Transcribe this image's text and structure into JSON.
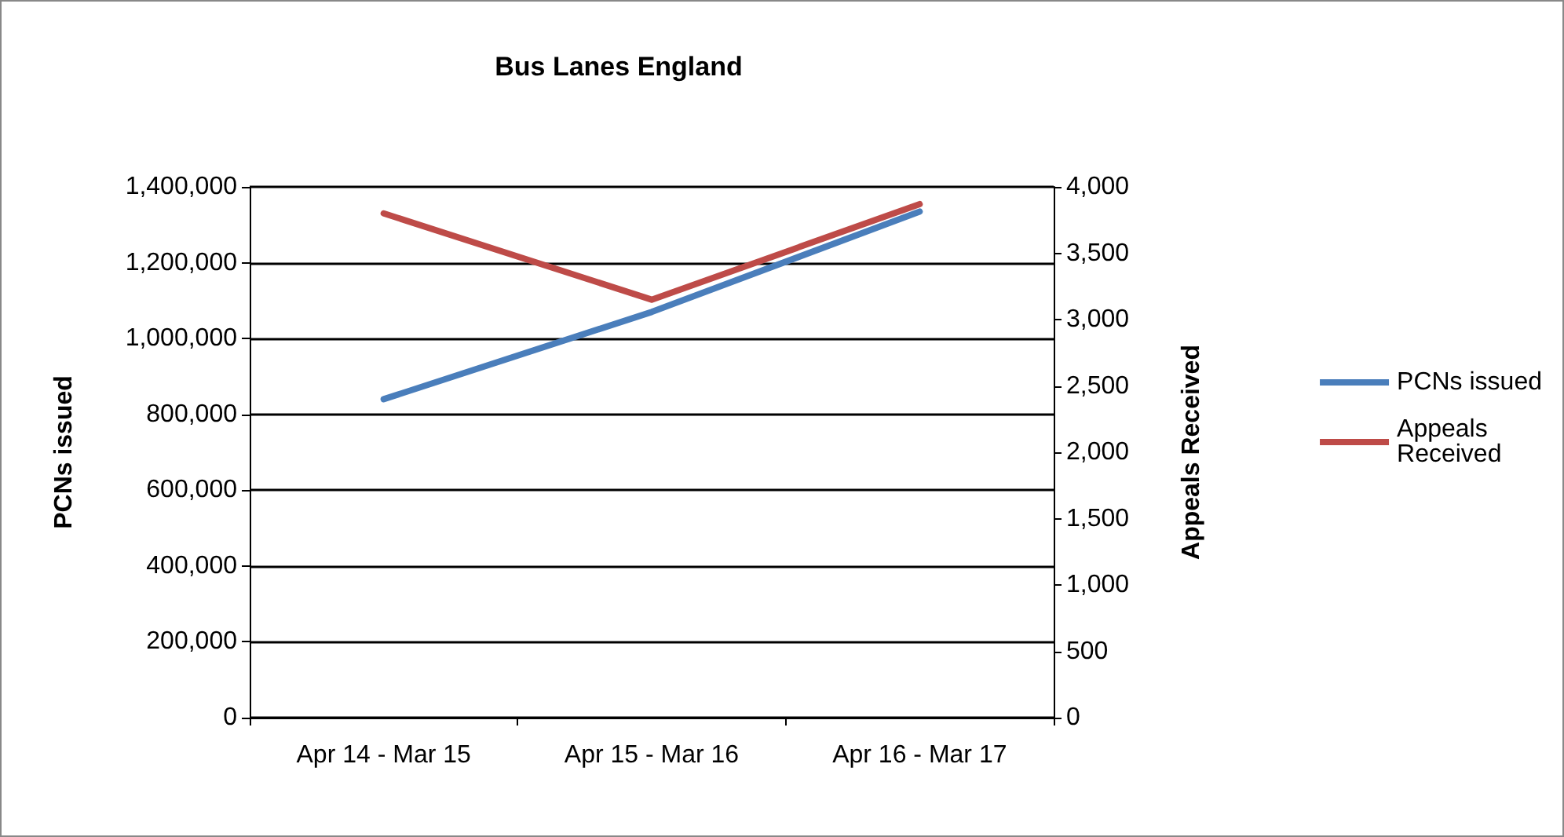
{
  "chart_data": {
    "type": "line",
    "title": "Bus Lanes England",
    "ylabel": "PCNs issued",
    "y2label": "Appeals Received",
    "categories": [
      "Apr 14 - Mar 15",
      "Apr 15 - Mar 16",
      "Apr 16 - Mar 17"
    ],
    "series": [
      {
        "name": "PCNs issued",
        "color": "#4a7ebb",
        "values": [
          840000,
          1070000,
          1335000
        ]
      },
      {
        "name": "Appeals Received",
        "color": "#be4b48",
        "values": [
          3800,
          3150,
          3870
        ],
        "axis": "y2"
      }
    ],
    "ylim": [
      0,
      1400000
    ],
    "yticks": [
      0,
      {
        "value": 200000,
        "label": "200,000"
      },
      {
        "value": 400000,
        "label": "400,000"
      },
      {
        "value": 600000,
        "label": "600,000"
      },
      {
        "value": 800000,
        "label": "800,000"
      },
      {
        "value": 1000000,
        "label": "1,000,000"
      },
      {
        "value": 1200000,
        "label": "1,200,000"
      },
      {
        "value": 1400000,
        "label": "1,400,000"
      }
    ],
    "y2lim": [
      0,
      4000
    ],
    "y2ticks": [
      0,
      500,
      {
        "value": 1000,
        "label": "1,000"
      },
      {
        "value": 1500,
        "label": "1,500"
      },
      {
        "value": 2000,
        "label": "2,000"
      },
      {
        "value": 2500,
        "label": "2,500"
      },
      {
        "value": 3000,
        "label": "3,000"
      },
      {
        "value": 3500,
        "label": "3,500"
      },
      {
        "value": 4000,
        "label": "4,000"
      }
    ],
    "grid": "y",
    "legend": "right",
    "marker": "none",
    "line_style": "solid"
  }
}
